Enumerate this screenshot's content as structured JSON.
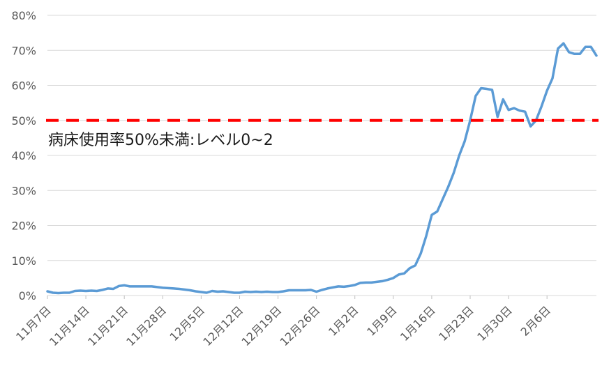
{
  "chart_data": {
    "type": "line",
    "title": "",
    "xlabel": "",
    "ylabel": "",
    "ylim": [
      0,
      80
    ],
    "yticks": [
      0,
      10,
      20,
      30,
      40,
      50,
      60,
      70,
      80
    ],
    "ytick_labels": [
      "0%",
      "10%",
      "20%",
      "30%",
      "40%",
      "50%",
      "60%",
      "70%",
      "80%"
    ],
    "grid": "horizontal",
    "legend": "none",
    "x_tick_labels": [
      "11月7日",
      "11月14日",
      "11月21日",
      "11月28日",
      "12月5日",
      "12月12日",
      "12月19日",
      "12月26日",
      "1月2日",
      "1月9日",
      "1月16日",
      "1月23日",
      "1月30日",
      "2月6日"
    ],
    "x_tick_day_index": [
      0,
      7,
      14,
      21,
      28,
      35,
      42,
      49,
      56,
      63,
      70,
      77,
      84,
      91
    ],
    "series": [
      {
        "color": "#5B9BD5",
        "values": [
          1.2,
          0.8,
          0.7,
          0.8,
          0.8,
          1.3,
          1.4,
          1.3,
          1.4,
          1.3,
          1.6,
          2.0,
          1.9,
          2.7,
          2.9,
          2.6,
          2.6,
          2.6,
          2.6,
          2.6,
          2.4,
          2.2,
          2.1,
          2.0,
          1.9,
          1.7,
          1.5,
          1.2,
          1.0,
          0.8,
          1.3,
          1.1,
          1.2,
          1.0,
          0.8,
          0.8,
          1.1,
          1.0,
          1.1,
          1.0,
          1.1,
          1.0,
          1.0,
          1.2,
          1.5,
          1.5,
          1.5,
          1.5,
          1.6,
          1.1,
          1.6,
          2.0,
          2.3,
          2.6,
          2.5,
          2.7,
          3.0,
          3.6,
          3.7,
          3.7,
          3.9,
          4.1,
          4.5,
          5.0,
          6.0,
          6.3,
          7.8,
          8.6,
          12.0,
          17.0,
          23.0,
          24.0,
          27.5,
          31.0,
          35.0,
          40.0,
          44.0,
          50.0,
          57.0,
          59.2,
          59.0,
          58.7,
          51.0,
          56.0,
          53.0,
          53.5,
          52.8,
          52.5,
          48.3,
          50.0,
          54.0,
          58.5,
          62.0,
          70.5,
          72.0,
          69.5,
          69.0,
          69.0,
          71.0,
          71.0,
          68.5
        ]
      }
    ],
    "threshold": {
      "value": 50,
      "color": "#FF0000",
      "style": "dashed",
      "label": "病床使用率50%未満:レベル0~2"
    }
  }
}
